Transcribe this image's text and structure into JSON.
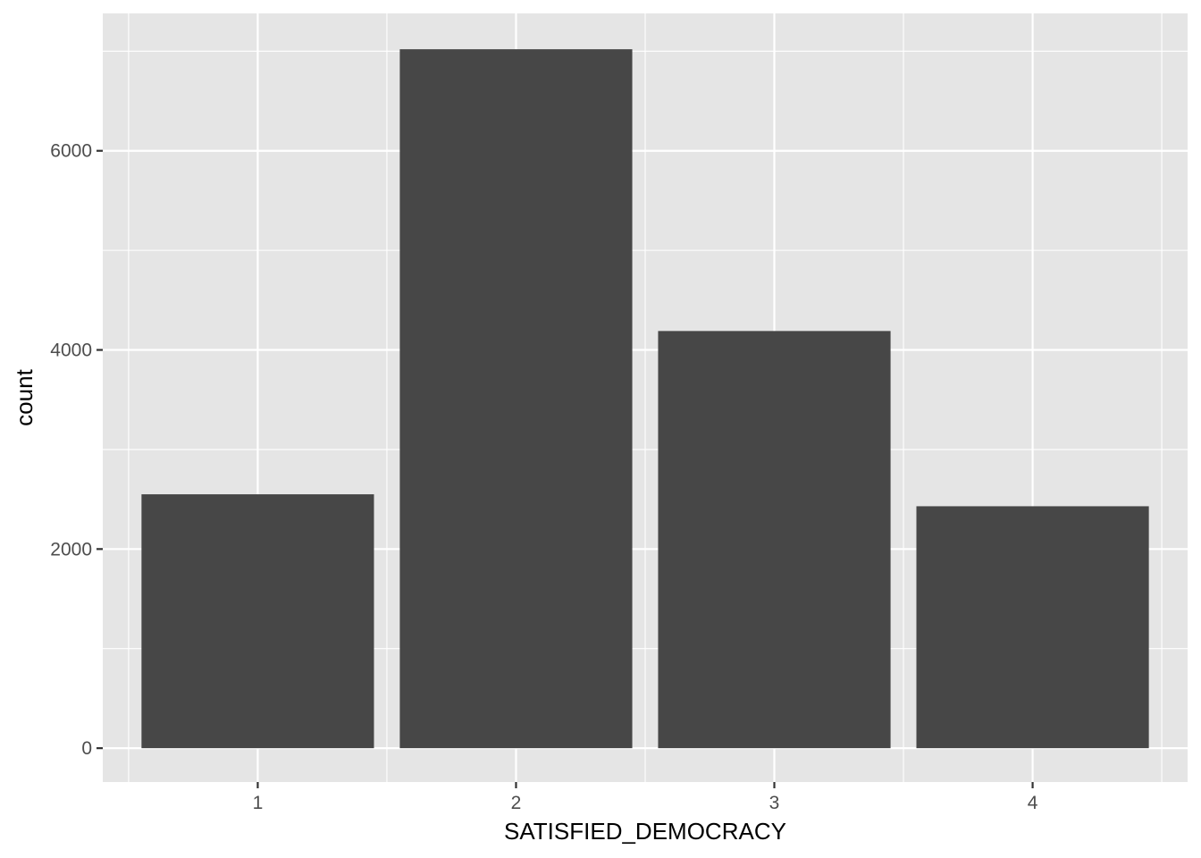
{
  "chart_data": {
    "type": "bar",
    "categories": [
      "1",
      "2",
      "3",
      "4"
    ],
    "values": [
      2550,
      7020,
      4190,
      2430
    ],
    "xlabel": "SATISFIED_DEMOCRACY",
    "ylabel": "count",
    "ylim": [
      -340,
      7380
    ],
    "y_ticks": [
      0,
      2000,
      4000,
      6000
    ],
    "y_tick_labels": [
      "0",
      "2000",
      "4000",
      "6000"
    ],
    "grid": true,
    "legend": "none",
    "colors": {
      "panel_background": "#e5e5e5",
      "grid": "#ffffff",
      "bar_fill": "#474747",
      "tick_text": "#4d4d4d",
      "tick_mark": "#333333",
      "axis_title": "#000000"
    }
  }
}
